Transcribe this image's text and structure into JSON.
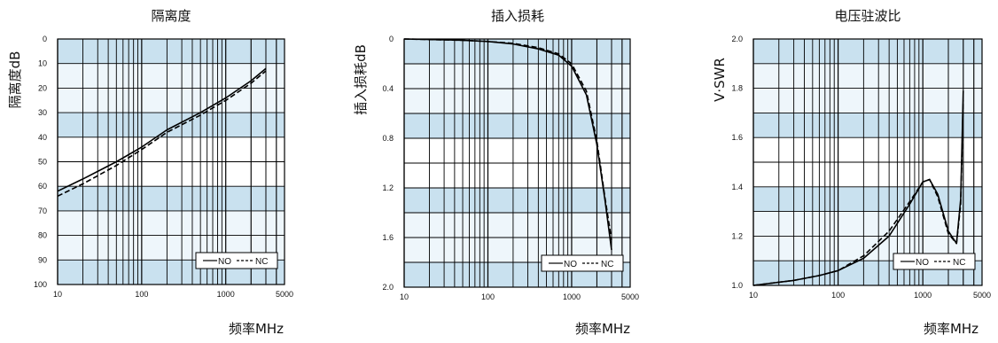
{
  "chart_data": [
    {
      "type": "line",
      "title": "隔离度",
      "ylabel": "隔离度dB",
      "xlabel": "频率MHz",
      "xscale": "log",
      "xlim": [
        10,
        5000
      ],
      "xticks": [
        "10",
        "100",
        "1000",
        "5000"
      ],
      "ylim": [
        0,
        100
      ],
      "y_inverted": true,
      "yticks": [
        "0",
        "10",
        "20",
        "30",
        "40",
        "50",
        "60",
        "70",
        "80",
        "90",
        "100"
      ],
      "grid": true,
      "legend": "bottom-right",
      "series": [
        {
          "name": "NO",
          "style": "solid",
          "x": [
            10,
            20,
            50,
            100,
            200,
            500,
            1000,
            2000,
            3000
          ],
          "y": [
            62,
            57,
            50,
            44,
            37,
            30,
            24,
            17,
            12
          ]
        },
        {
          "name": "NC",
          "style": "dashed",
          "x": [
            10,
            20,
            50,
            100,
            200,
            500,
            1000,
            2000,
            3000
          ],
          "y": [
            64,
            59,
            51.5,
            45,
            38,
            31,
            25,
            18,
            13
          ]
        }
      ]
    },
    {
      "type": "line",
      "title": "插入损耗",
      "ylabel": "插入损耗dB",
      "xlabel": "频率MHz",
      "xscale": "log",
      "xlim": [
        10,
        5000
      ],
      "xticks": [
        "10",
        "100",
        "1000",
        "5000"
      ],
      "ylim": [
        0,
        2.0
      ],
      "y_inverted": true,
      "yticks": [
        "0",
        "0.4",
        "0.8",
        "1.2",
        "1.6",
        "2.0"
      ],
      "grid": true,
      "legend": "bottom-right",
      "series": [
        {
          "name": "NO",
          "style": "solid",
          "x": [
            10,
            50,
            100,
            200,
            400,
            700,
            1000,
            1500,
            2000,
            2500,
            3000
          ],
          "y": [
            0.0,
            0.01,
            0.02,
            0.04,
            0.08,
            0.13,
            0.22,
            0.45,
            0.85,
            1.3,
            1.7
          ]
        },
        {
          "name": "NC",
          "style": "dashed",
          "x": [
            10,
            50,
            100,
            200,
            400,
            700,
            1000,
            1500,
            2000,
            2500,
            3000
          ],
          "y": [
            0.0,
            0.01,
            0.02,
            0.035,
            0.07,
            0.12,
            0.2,
            0.42,
            0.82,
            1.28,
            1.62
          ]
        }
      ]
    },
    {
      "type": "line",
      "title": "电压驻波比",
      "ylabel": "V·SWR",
      "xlabel": "频率MHz",
      "xscale": "log",
      "xlim": [
        10,
        5000
      ],
      "xticks": [
        "10",
        "100",
        "1000",
        "5000"
      ],
      "ylim": [
        1.0,
        2.0
      ],
      "yticks": [
        "1.0",
        "1.2",
        "1.4",
        "1.6",
        "1.8",
        "2.0"
      ],
      "grid": true,
      "legend": "bottom-right",
      "series": [
        {
          "name": "NO",
          "style": "solid",
          "x": [
            10,
            30,
            60,
            100,
            200,
            400,
            700,
            1000,
            1200,
            1500,
            2000,
            2500,
            2800,
            3000
          ],
          "y": [
            1.0,
            1.02,
            1.04,
            1.06,
            1.11,
            1.2,
            1.33,
            1.42,
            1.43,
            1.37,
            1.22,
            1.17,
            1.35,
            1.79
          ]
        },
        {
          "name": "NC",
          "style": "dashed",
          "x": [
            10,
            30,
            60,
            100,
            200,
            400,
            700,
            1000,
            1200,
            1500,
            2000,
            2500,
            2800,
            3000
          ],
          "y": [
            1.0,
            1.02,
            1.04,
            1.06,
            1.12,
            1.22,
            1.34,
            1.42,
            1.43,
            1.36,
            1.21,
            1.17,
            1.33,
            1.75
          ]
        }
      ]
    }
  ],
  "legend_labels": {
    "no": "NO",
    "nc": "NC"
  },
  "colors": {
    "band": "#c9e1ef",
    "band_light": "#eef6fb",
    "grid": "#000000",
    "line": "#000000"
  }
}
